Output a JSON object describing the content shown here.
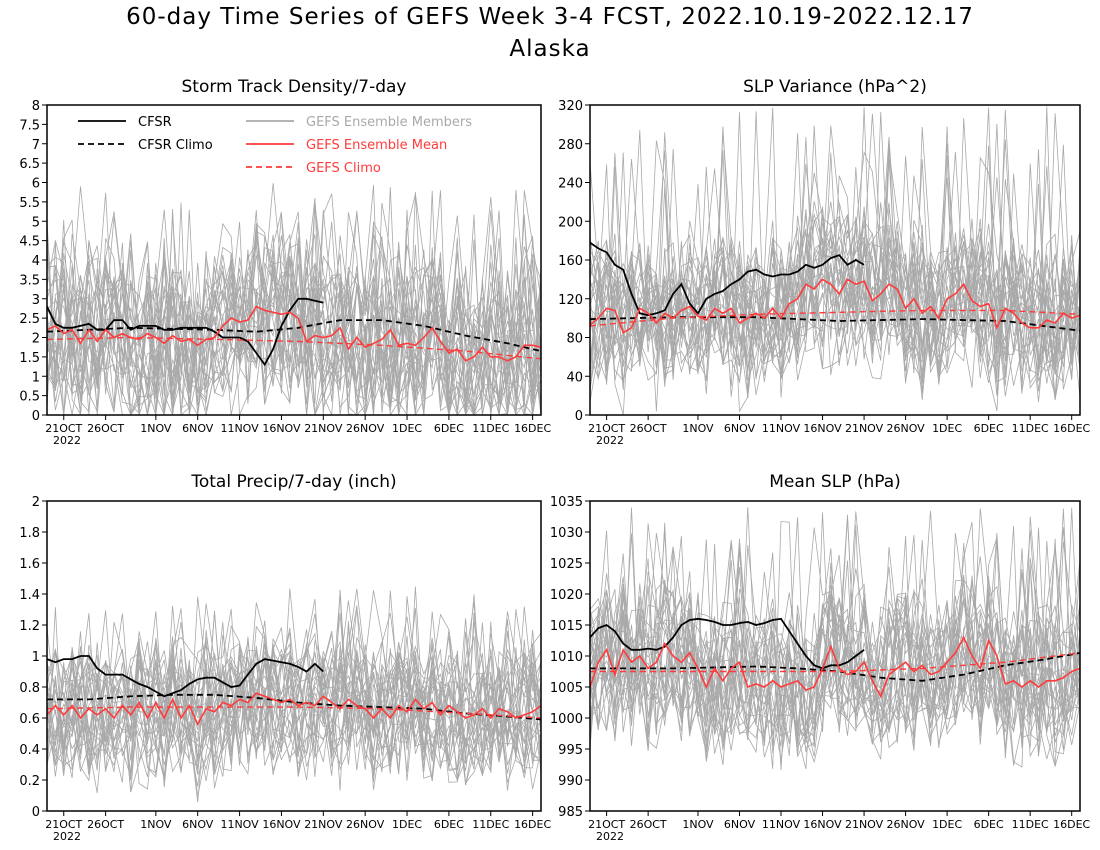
{
  "title": "60-day Time Series of GEFS Week 3-4 FCST, 2022.10.19-2022.12.17",
  "subtitle": "Alaska",
  "colors": {
    "cfsr": "#000000",
    "members": "#a9a9a9",
    "gefs_mean": "#ff3b3b",
    "gefs_climo": "#ff3b3b",
    "axis": "#000000"
  },
  "legend": {
    "cfsr": "CFSR",
    "cfsr_climo": "CFSR Climo",
    "members": "GEFS Ensemble Members",
    "gefs_mean": "GEFS Ensemble Mean",
    "gefs_climo": "GEFS Climo"
  },
  "x_tick_labels": [
    "21OCT",
    "26OCT",
    "1NOV",
    "6NOV",
    "11NOV",
    "16NOV",
    "21NOV",
    "26NOV",
    "1DEC",
    "6DEC",
    "11DEC",
    "16DEC"
  ],
  "x_year_label": "2022",
  "chart_data": [
    {
      "type": "line",
      "title": "Storm Track Density/7-day",
      "legend_placement": "top-left",
      "ylim": [
        0,
        8
      ],
      "yticks": [
        0,
        0.5,
        1,
        1.5,
        2,
        2.5,
        3,
        3.5,
        4,
        4.5,
        5,
        5.5,
        6,
        6.5,
        7,
        7.5,
        8
      ],
      "x_dates": "2022-10-19 to 2022-12-17 (day 0 to day 59)",
      "ensemble_members": {
        "count": 30,
        "typical_range": [
          0.3,
          5.0
        ],
        "peak": 6.0
      },
      "series": [
        {
          "name": "CFSR",
          "style": "solid-black",
          "day": [
            0,
            1,
            2,
            3,
            5,
            6,
            7,
            8,
            9,
            10,
            11,
            12,
            13,
            14,
            15,
            16,
            17,
            18,
            19,
            20,
            21,
            22,
            23,
            24,
            25,
            26,
            27,
            28,
            29,
            30,
            31,
            32,
            33
          ],
          "values": [
            2.8,
            2.35,
            2.25,
            2.25,
            2.35,
            2.2,
            2.2,
            2.45,
            2.45,
            2.2,
            2.3,
            2.3,
            2.3,
            2.2,
            2.2,
            2.25,
            2.25,
            2.25,
            2.25,
            2.15,
            2.0,
            2.0,
            2.0,
            1.9,
            1.6,
            1.3,
            1.7,
            2.3,
            2.7,
            3.0,
            3.0,
            2.95,
            2.9
          ]
        },
        {
          "name": "CFSR Climo",
          "style": "dashed-black",
          "day": [
            0,
            10,
            20,
            25,
            30,
            35,
            40,
            45,
            50,
            55,
            59
          ],
          "values": [
            2.15,
            2.25,
            2.2,
            2.15,
            2.25,
            2.45,
            2.45,
            2.3,
            2.05,
            1.85,
            1.65
          ]
        },
        {
          "name": "GEFS Ensemble Mean",
          "style": "solid-red",
          "day": [
            0,
            1,
            2,
            3,
            4,
            5,
            6,
            7,
            8,
            9,
            10,
            11,
            12,
            13,
            14,
            15,
            16,
            17,
            18,
            19,
            20,
            21,
            22,
            23,
            24,
            25,
            26,
            27,
            28,
            29,
            30,
            31,
            32,
            33,
            34,
            35,
            36,
            37,
            38,
            39,
            40,
            41,
            42,
            43,
            44,
            45,
            46,
            47,
            48,
            49,
            50,
            51,
            52,
            53,
            54,
            55,
            56,
            57,
            58,
            59
          ],
          "values": [
            2.2,
            2.3,
            2.1,
            2.2,
            1.85,
            2.2,
            1.9,
            2.2,
            2.0,
            2.1,
            2.0,
            1.95,
            2.1,
            2.0,
            1.85,
            2.05,
            1.9,
            1.95,
            1.8,
            1.95,
            2.0,
            2.3,
            2.5,
            2.4,
            2.45,
            2.8,
            2.7,
            2.65,
            2.6,
            2.65,
            2.5,
            1.9,
            2.05,
            2.0,
            2.05,
            2.25,
            1.7,
            2.0,
            1.75,
            1.85,
            1.95,
            2.2,
            1.8,
            1.85,
            1.8,
            2.0,
            2.25,
            1.9,
            1.6,
            1.7,
            1.4,
            1.5,
            1.75,
            1.5,
            1.5,
            1.4,
            1.5,
            1.8,
            1.8,
            1.75
          ]
        },
        {
          "name": "GEFS Climo",
          "style": "dashed-red",
          "day": [
            0,
            10,
            20,
            30,
            40,
            50,
            59
          ],
          "values": [
            1.95,
            2.0,
            1.95,
            1.9,
            1.8,
            1.65,
            1.45
          ]
        }
      ]
    },
    {
      "type": "line",
      "title": "SLP Variance (hPa^2)",
      "ylim": [
        0,
        320
      ],
      "yticks": [
        0,
        40,
        80,
        120,
        160,
        200,
        240,
        280,
        320
      ],
      "ensemble_members": {
        "count": 30,
        "typical_range": [
          40,
          200
        ],
        "peak": 320
      },
      "series": [
        {
          "name": "CFSR",
          "style": "solid-black",
          "day": [
            0,
            1,
            2,
            3,
            4,
            5,
            6,
            7,
            8,
            9,
            10,
            11,
            12,
            13,
            14,
            15,
            16,
            17,
            18,
            19,
            20,
            21,
            22,
            23,
            24,
            25,
            26,
            27,
            28,
            29,
            30,
            31,
            32,
            33
          ],
          "values": [
            178,
            172,
            168,
            155,
            150,
            125,
            105,
            103,
            105,
            108,
            125,
            135,
            115,
            105,
            120,
            125,
            128,
            135,
            140,
            148,
            150,
            145,
            143,
            145,
            145,
            148,
            155,
            152,
            155,
            162,
            165,
            155,
            160,
            155
          ]
        },
        {
          "name": "CFSR Climo",
          "style": "dashed-black",
          "day": [
            0,
            10,
            20,
            30,
            40,
            50,
            59
          ],
          "values": [
            99,
            101,
            101,
            97,
            99,
            97,
            87
          ]
        },
        {
          "name": "GEFS Ensemble Mean",
          "style": "solid-red",
          "day": [
            0,
            1,
            2,
            3,
            4,
            5,
            6,
            7,
            8,
            9,
            10,
            11,
            12,
            13,
            14,
            15,
            16,
            17,
            18,
            19,
            20,
            21,
            22,
            23,
            24,
            25,
            26,
            27,
            28,
            29,
            30,
            31,
            32,
            33,
            34,
            35,
            36,
            37,
            38,
            39,
            40,
            41,
            42,
            43,
            44,
            45,
            46,
            47,
            48,
            49,
            50,
            51,
            52,
            53,
            54,
            55,
            56,
            57,
            58,
            59
          ],
          "values": [
            93,
            100,
            110,
            108,
            85,
            90,
            110,
            105,
            95,
            105,
            100,
            108,
            112,
            102,
            98,
            110,
            105,
            110,
            95,
            100,
            105,
            100,
            110,
            100,
            115,
            120,
            135,
            130,
            140,
            135,
            125,
            140,
            135,
            138,
            118,
            125,
            135,
            130,
            110,
            120,
            105,
            112,
            100,
            120,
            125,
            135,
            118,
            112,
            115,
            90,
            110,
            105,
            95,
            90,
            90,
            98,
            95,
            105,
            100,
            103
          ]
        },
        {
          "name": "GEFS Climo",
          "style": "dashed-red",
          "day": [
            0,
            10,
            20,
            30,
            40,
            50,
            59
          ],
          "values": [
            92,
            100,
            104,
            106,
            108,
            108,
            104
          ]
        }
      ]
    },
    {
      "type": "line",
      "title": "Total Precip/7-day (inch)",
      "ylim": [
        0,
        2
      ],
      "yticks": [
        0,
        0.2,
        0.4,
        0.6,
        0.8,
        1,
        1.2,
        1.4,
        1.6,
        1.8,
        2
      ],
      "ensemble_members": {
        "count": 30,
        "typical_range": [
          0.3,
          1.2
        ],
        "peak": 1.45
      },
      "series": [
        {
          "name": "CFSR",
          "style": "solid-black",
          "day": [
            0,
            1,
            2,
            3,
            4,
            5,
            6,
            7,
            8,
            9,
            10,
            11,
            12,
            13,
            14,
            15,
            16,
            17,
            18,
            19,
            20,
            21,
            22,
            23,
            24,
            25,
            26,
            27,
            28,
            29,
            30,
            31,
            32,
            33
          ],
          "values": [
            0.98,
            0.96,
            0.98,
            0.98,
            1.0,
            1.0,
            0.92,
            0.88,
            0.88,
            0.88,
            0.85,
            0.82,
            0.8,
            0.77,
            0.74,
            0.76,
            0.78,
            0.82,
            0.85,
            0.86,
            0.86,
            0.83,
            0.8,
            0.81,
            0.88,
            0.95,
            0.98,
            0.97,
            0.96,
            0.95,
            0.93,
            0.9,
            0.95,
            0.9
          ]
        },
        {
          "name": "CFSR Climo",
          "style": "dashed-black",
          "day": [
            0,
            5,
            10,
            15,
            20,
            25,
            30,
            35,
            40,
            45,
            50,
            55,
            59
          ],
          "values": [
            0.72,
            0.72,
            0.74,
            0.75,
            0.75,
            0.73,
            0.7,
            0.68,
            0.67,
            0.66,
            0.63,
            0.61,
            0.59
          ]
        },
        {
          "name": "GEFS Ensemble Mean",
          "style": "solid-red",
          "day": [
            0,
            1,
            2,
            3,
            4,
            5,
            6,
            7,
            8,
            9,
            10,
            11,
            12,
            13,
            14,
            15,
            16,
            17,
            18,
            19,
            20,
            21,
            22,
            23,
            24,
            25,
            26,
            27,
            28,
            29,
            30,
            31,
            32,
            33,
            34,
            35,
            36,
            37,
            38,
            39,
            40,
            41,
            42,
            43,
            44,
            45,
            46,
            47,
            48,
            49,
            50,
            51,
            52,
            53,
            54,
            55,
            56,
            57,
            58,
            59
          ],
          "values": [
            0.62,
            0.68,
            0.62,
            0.68,
            0.6,
            0.66,
            0.62,
            0.66,
            0.6,
            0.68,
            0.62,
            0.7,
            0.6,
            0.7,
            0.6,
            0.72,
            0.6,
            0.68,
            0.56,
            0.66,
            0.64,
            0.7,
            0.68,
            0.72,
            0.7,
            0.76,
            0.74,
            0.72,
            0.7,
            0.72,
            0.68,
            0.7,
            0.68,
            0.74,
            0.7,
            0.66,
            0.72,
            0.68,
            0.66,
            0.6,
            0.66,
            0.6,
            0.68,
            0.64,
            0.72,
            0.66,
            0.7,
            0.62,
            0.68,
            0.64,
            0.6,
            0.62,
            0.66,
            0.6,
            0.66,
            0.64,
            0.6,
            0.62,
            0.64,
            0.68
          ]
        },
        {
          "name": "GEFS Climo",
          "style": "dashed-red",
          "day": [
            0,
            10,
            20,
            30,
            40,
            50,
            59
          ],
          "values": [
            0.66,
            0.67,
            0.67,
            0.67,
            0.66,
            0.63,
            0.6
          ]
        }
      ]
    },
    {
      "type": "line",
      "title": "Mean SLP (hPa)",
      "ylim": [
        985,
        1035
      ],
      "yticks": [
        985,
        990,
        995,
        1000,
        1005,
        1010,
        1015,
        1020,
        1025,
        1030,
        1035
      ],
      "ensemble_members": {
        "count": 30,
        "typical_range": [
          997,
          1022
        ],
        "peak": 1034
      },
      "series": [
        {
          "name": "CFSR",
          "style": "solid-black",
          "day": [
            0,
            1,
            2,
            3,
            4,
            5,
            6,
            7,
            8,
            9,
            10,
            11,
            12,
            13,
            14,
            15,
            16,
            17,
            18,
            19,
            20,
            21,
            22,
            23,
            24,
            25,
            26,
            27,
            28,
            29,
            30,
            31,
            32,
            33
          ],
          "values": [
            1013,
            1014.5,
            1015,
            1014,
            1012,
            1011,
            1011,
            1011.2,
            1011,
            1011.5,
            1013,
            1015,
            1015.8,
            1016,
            1015.8,
            1015.5,
            1015,
            1015,
            1015.3,
            1015.5,
            1015,
            1015.3,
            1015.8,
            1016,
            1014,
            1012,
            1010,
            1008.5,
            1008,
            1008.5,
            1008.5,
            1009,
            1010,
            1011
          ]
        },
        {
          "name": "CFSR Climo",
          "style": "dashed-black",
          "day": [
            0,
            10,
            20,
            25,
            30,
            35,
            40,
            45,
            50,
            55,
            59
          ],
          "values": [
            1008,
            1008,
            1008.3,
            1008,
            1007.5,
            1006.5,
            1006,
            1007,
            1008.5,
            1009.5,
            1010.5
          ]
        },
        {
          "name": "GEFS Ensemble Mean",
          "style": "solid-red",
          "day": [
            0,
            1,
            2,
            3,
            4,
            5,
            6,
            7,
            8,
            9,
            10,
            11,
            12,
            13,
            14,
            15,
            16,
            17,
            18,
            19,
            20,
            21,
            22,
            23,
            24,
            25,
            26,
            27,
            28,
            29,
            30,
            31,
            32,
            33,
            34,
            35,
            36,
            37,
            38,
            39,
            40,
            41,
            42,
            43,
            44,
            45,
            46,
            47,
            48,
            49,
            50,
            51,
            52,
            53,
            54,
            55,
            56,
            57,
            58,
            59
          ],
          "values": [
            1005,
            1009,
            1011,
            1007,
            1011,
            1009,
            1010,
            1008,
            1009,
            1012,
            1010,
            1009,
            1010.5,
            1008,
            1005,
            1008,
            1006,
            1008,
            1009,
            1005,
            1005.5,
            1005,
            1006,
            1005,
            1005.5,
            1006,
            1004.5,
            1005,
            1008,
            1011.5,
            1008,
            1007,
            1007.5,
            1009,
            1006,
            1003.5,
            1007,
            1008,
            1009,
            1007.5,
            1008.5,
            1007,
            1007.5,
            1009,
            1010.5,
            1013,
            1010,
            1008,
            1012.5,
            1010,
            1005.5,
            1006,
            1005,
            1006,
            1005,
            1006,
            1006,
            1006.5,
            1007.5,
            1008
          ]
        },
        {
          "name": "GEFS Climo",
          "style": "dashed-red",
          "day": [
            0,
            10,
            20,
            30,
            40,
            50,
            59
          ],
          "values": [
            1007.5,
            1007.5,
            1007.5,
            1007.5,
            1008,
            1009,
            1010.5
          ]
        }
      ]
    }
  ]
}
